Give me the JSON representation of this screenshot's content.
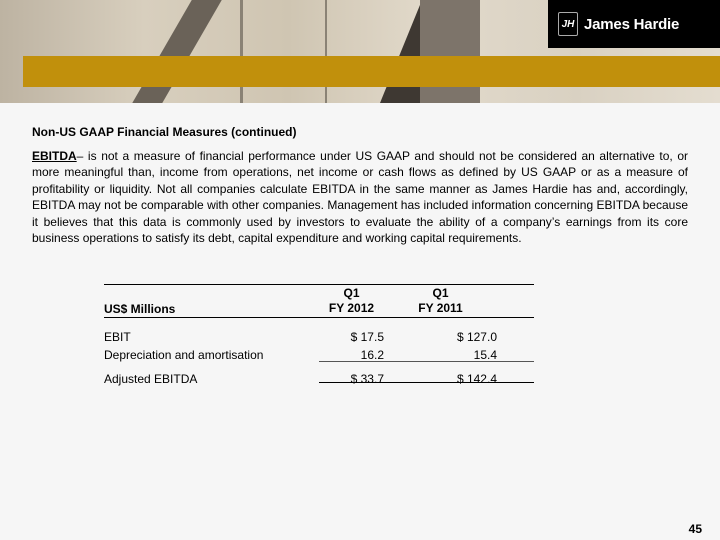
{
  "logo": {
    "text": "James Hardie",
    "mark": "JH"
  },
  "heading": "Non-US GAAP Financial Measures (continued)",
  "paragraph": {
    "term": "EBITDA",
    "body": "– is not a measure of financial performance under US GAAP and should not be considered an alternative to, or more meaningful than, income from operations, net income or cash flows as defined by US GAAP or as a measure of profitability or liquidity. Not all companies calculate EBITDA in the same manner as James Hardie has and, accordingly, EBITDA may not be comparable with other companies. Management has included information concerning EBITDA because it believes that this data is commonly used by investors to evaluate the ability of a company’s earnings from its core business operations to satisfy its debt, capital expenditure and working capital requirements."
  },
  "table": {
    "header": {
      "label": "US$ Millions",
      "col1": [
        "Q1",
        "FY 2012"
      ],
      "col2": [
        "Q1",
        "FY 2011"
      ]
    },
    "rows": [
      {
        "label": "EBIT",
        "v1": "$ 17.5",
        "v2": "$ 127.0"
      },
      {
        "label": "Depreciation and amortisation",
        "v1": "16.2",
        "v2": "15.4"
      },
      {
        "label": "Adjusted EBITDA",
        "v1": "$ 33.7",
        "v2": "$ 142.4"
      }
    ]
  },
  "page_number": "45",
  "colors": {
    "gold": "#c1900c",
    "logo_bg": "#000000"
  }
}
